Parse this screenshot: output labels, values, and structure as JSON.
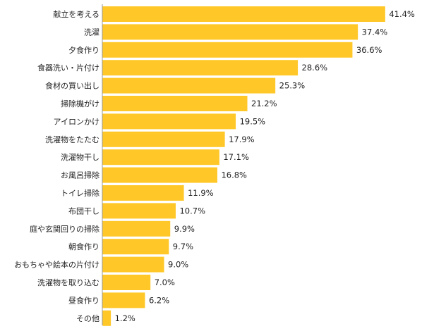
{
  "chart_data": {
    "type": "bar",
    "orientation": "horizontal",
    "categories": [
      "献立を考える",
      "洗濯",
      "夕食作り",
      "食器洗い・片付け",
      "食材の買い出し",
      "掃除機がけ",
      "アイロンかけ",
      "洗濯物をたたむ",
      "洗濯物干し",
      "お風呂掃除",
      "トイレ掃除",
      "布団干し",
      "庭や玄関回りの掃除",
      "朝食作り",
      "おもちゃや絵本の片付け",
      "洗濯物を取り込む",
      "昼食作り",
      "その他"
    ],
    "values": [
      41.4,
      37.4,
      36.6,
      28.6,
      25.3,
      21.2,
      19.5,
      17.9,
      17.1,
      16.8,
      11.9,
      10.7,
      9.9,
      9.7,
      9.0,
      7.0,
      6.2,
      1.2
    ],
    "value_labels": [
      "41.4%",
      "37.4%",
      "36.6%",
      "28.6%",
      "25.3%",
      "21.2%",
      "19.5%",
      "17.9%",
      "17.1%",
      "16.8%",
      "11.9%",
      "10.7%",
      "9.9%",
      "9.7%",
      "9.0%",
      "7.0%",
      "6.2%",
      "1.2%"
    ],
    "xlim": [
      0,
      45
    ],
    "grid": false,
    "bar_color": "#FFC727",
    "axis_color": "#999999",
    "text_color": "#222222"
  }
}
